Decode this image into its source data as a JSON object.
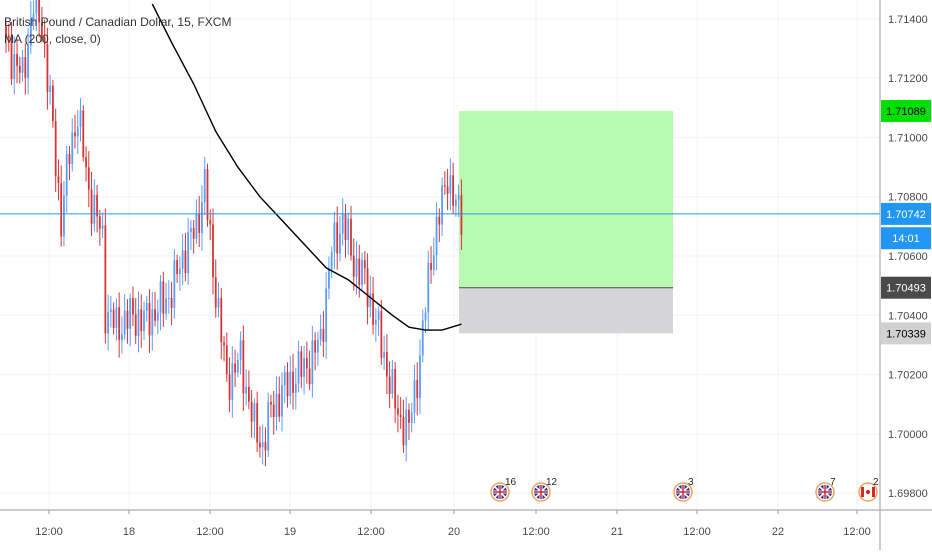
{
  "legend": {
    "symbol_line": "British Pound / Canadian Dollar, 15, FXCM",
    "indicator_line": "MA (200, close, 0)"
  },
  "chart_data": {
    "type": "candlestick",
    "y_axis": {
      "range": [
        1.6975,
        1.7145
      ],
      "tick_labels": [
        "1.71400",
        "1.71200",
        "1.71000",
        "1.70800",
        "1.70600",
        "1.70400",
        "1.70200",
        "1.70000",
        "1.69800"
      ],
      "tick_values": [
        1.714,
        1.712,
        1.71,
        1.708,
        1.706,
        1.704,
        1.702,
        1.7,
        1.698
      ]
    },
    "x_axis": {
      "tick_labels": [
        "12:00",
        "18",
        "12:00",
        "19",
        "12:00",
        "20",
        "12:00",
        "21",
        "12:00",
        "22",
        "12:00"
      ]
    },
    "price_labels": [
      {
        "text": "1.71089",
        "value": 1.71089,
        "bg": "#00e000",
        "fg": "#000000"
      },
      {
        "text": "1.70742",
        "value": 1.70742,
        "bg": "#2196f3",
        "fg": "#ffffff"
      },
      {
        "text": "14:01",
        "value": 1.7066,
        "bg": "#2196f3",
        "fg": "#ffffff"
      },
      {
        "text": "1.70493",
        "value": 1.70493,
        "bg": "#4a4a4a",
        "fg": "#ffffff"
      },
      {
        "text": "1.70339",
        "value": 1.70339,
        "bg": "#d1d1d1",
        "fg": "#000000"
      }
    ],
    "current_price": 1.70742,
    "position": {
      "entry": 1.70493,
      "target": 1.71089,
      "stop": 1.70339,
      "profit_color": "#b8fbb0",
      "loss_color": "#d6d6d9"
    },
    "colors": {
      "up": "#5b9cf6",
      "down": "#d93434",
      "ma": "#000000",
      "current_line": "#2196f3"
    },
    "anchors": [
      [
        0,
        1.7132
      ],
      [
        6,
        1.712
      ],
      [
        10,
        1.7145
      ],
      [
        13,
        1.7138
      ],
      [
        16,
        1.7112
      ],
      [
        20,
        1.7072
      ],
      [
        23,
        1.7095
      ],
      [
        26,
        1.7108
      ],
      [
        30,
        1.7082
      ],
      [
        35,
        1.7066
      ],
      [
        36,
        1.7042
      ],
      [
        40,
        1.7036
      ],
      [
        46,
        1.704
      ],
      [
        50,
        1.7038
      ],
      [
        55,
        1.7042
      ],
      [
        60,
        1.7048
      ],
      [
        64,
        1.706
      ],
      [
        69,
        1.707
      ],
      [
        72,
        1.7084
      ],
      [
        75,
        1.7056
      ],
      [
        80,
        1.7018
      ],
      [
        85,
        1.7025
      ],
      [
        90,
        1.7002
      ],
      [
        93,
        1.6996
      ],
      [
        96,
        1.7008
      ],
      [
        100,
        1.7014
      ],
      [
        105,
        1.702
      ],
      [
        110,
        1.7024
      ],
      [
        114,
        1.7032
      ],
      [
        118,
        1.7062
      ],
      [
        122,
        1.7072
      ],
      [
        126,
        1.7058
      ],
      [
        130,
        1.7052
      ],
      [
        134,
        1.7038
      ],
      [
        138,
        1.7022
      ],
      [
        142,
        1.7006
      ],
      [
        146,
        1.7002
      ],
      [
        150,
        1.7026
      ],
      [
        154,
        1.706
      ],
      [
        158,
        1.7078
      ],
      [
        160,
        1.7088
      ],
      [
        163,
        1.7076
      ],
      [
        165,
        1.7074
      ]
    ],
    "ma_points": [
      [
        53,
        1.7145
      ],
      [
        60,
        1.7132
      ],
      [
        68,
        1.7118
      ],
      [
        76,
        1.7102
      ],
      [
        84,
        1.709
      ],
      [
        92,
        1.708
      ],
      [
        100,
        1.7072
      ],
      [
        108,
        1.7064
      ],
      [
        116,
        1.7056
      ],
      [
        124,
        1.7052
      ],
      [
        132,
        1.7046
      ],
      [
        140,
        1.704
      ],
      [
        146,
        1.7036
      ],
      [
        152,
        1.7035
      ],
      [
        158,
        1.7035
      ],
      [
        165,
        1.7037
      ]
    ],
    "events": [
      {
        "label": "16",
        "flag": "uk"
      },
      {
        "label": "12",
        "flag": "uk"
      },
      {
        "label": "3",
        "flag": "uk"
      },
      {
        "label": "7",
        "flag": "uk"
      },
      {
        "label": "2",
        "flag": "ca"
      }
    ]
  }
}
